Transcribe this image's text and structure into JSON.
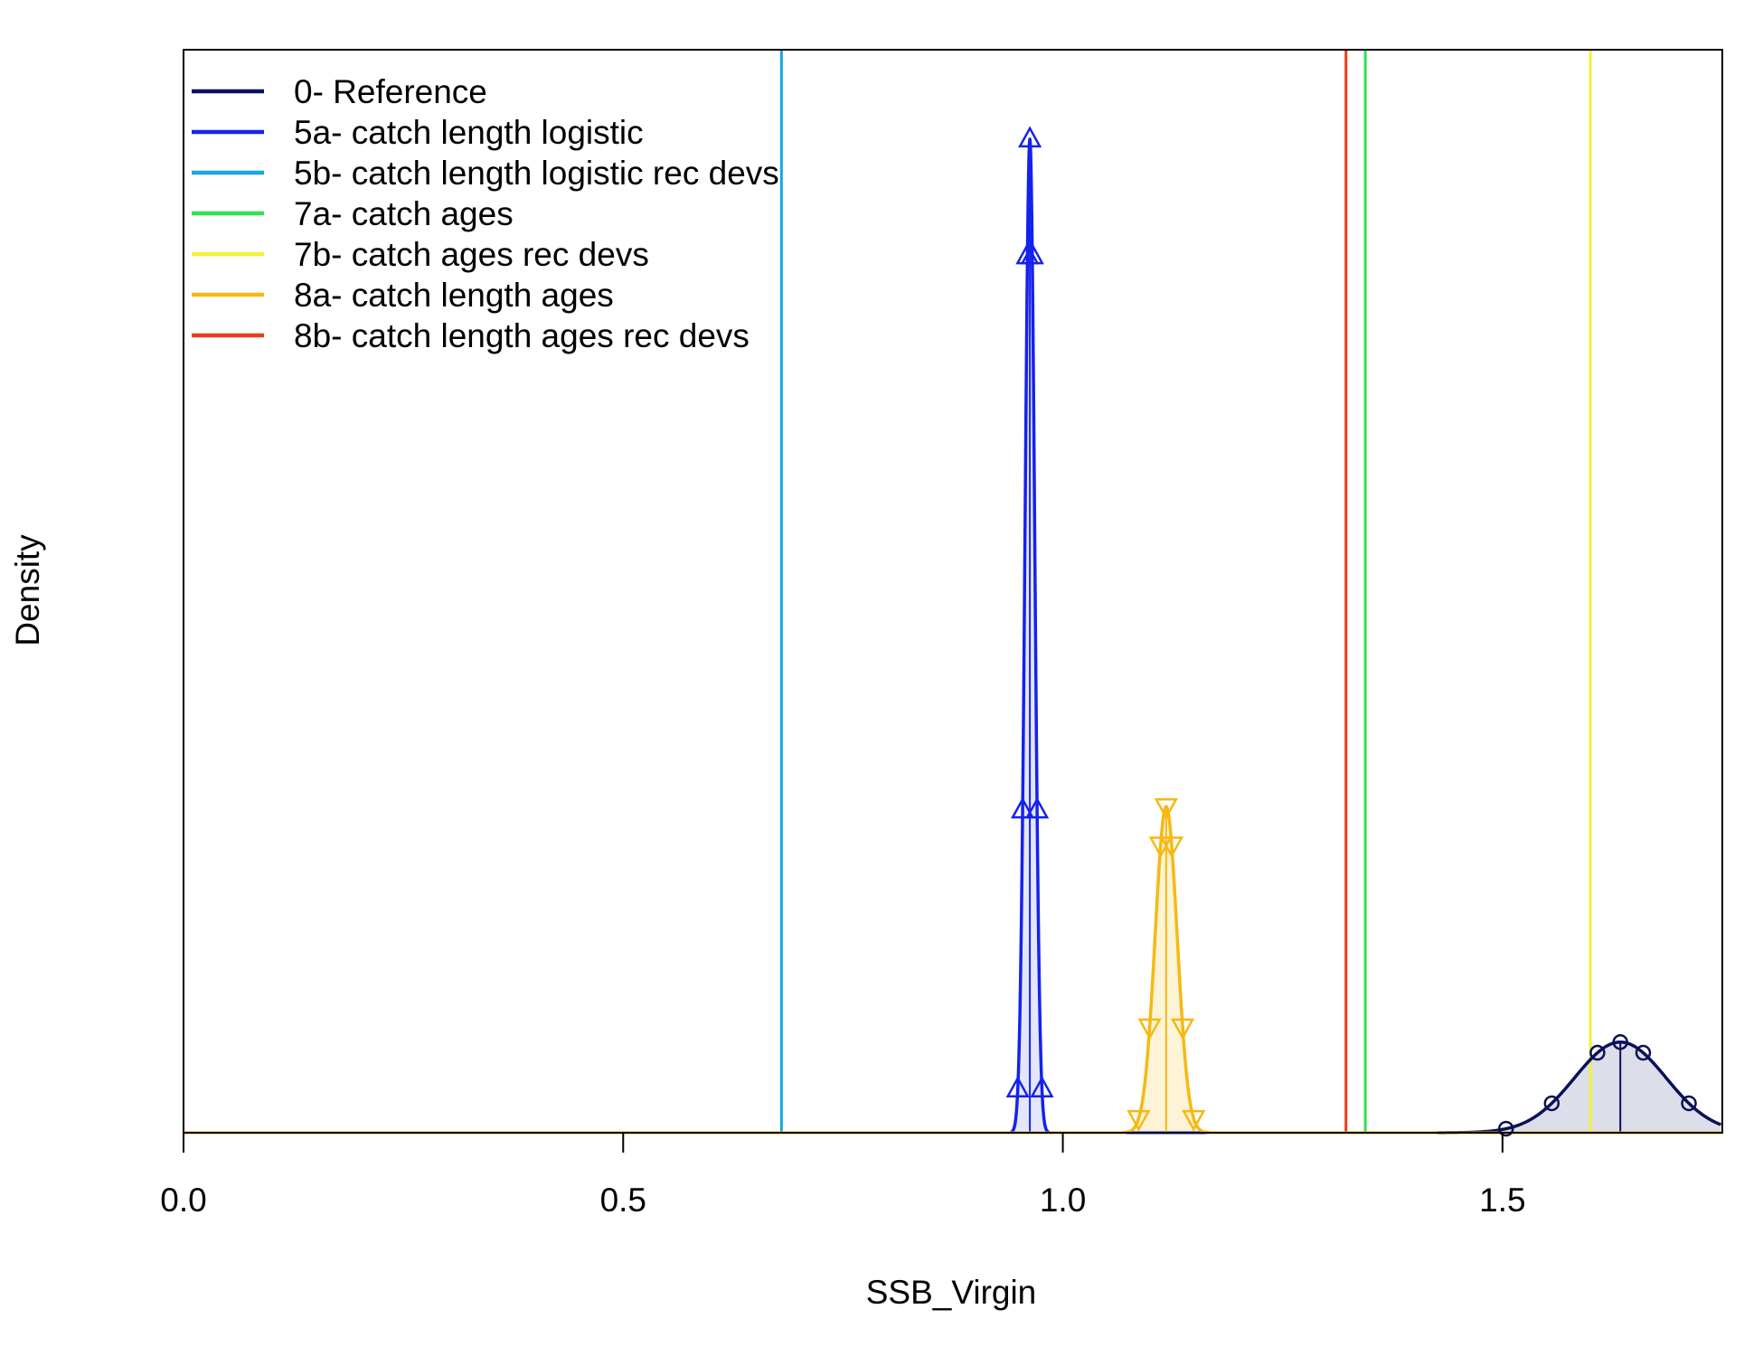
{
  "chart_data": {
    "type": "line",
    "xlabel": "SSB_Virgin",
    "ylabel": "Density",
    "xlim": [
      0.0,
      1.75
    ],
    "ylim": [
      0,
      1.09
    ],
    "x_ticks": [
      "0.0",
      "0.5",
      "1.0",
      "1.5"
    ],
    "x_tick_values": [
      0.0,
      0.5,
      1.0,
      1.5
    ],
    "grid": false,
    "legend_position": "top-left",
    "series": [
      {
        "name": "0- Reference",
        "color": "#0b1159",
        "kind": "density",
        "mean": 1.634,
        "sd": 0.052,
        "peak": 0.0912,
        "vline": 1.634,
        "fill": "#dcdfe9",
        "marker": "circle"
      },
      {
        "name": "5a- catch length logistic",
        "color": "#1522ee",
        "kind": "density",
        "mean": 0.9625,
        "sd": 0.0055,
        "peak": 1.0,
        "vline": 0.9625,
        "fill": "#e4e6fc",
        "marker": "triangle-up"
      },
      {
        "name": "5b- catch length logistic rec devs",
        "color": "#18a6e0",
        "kind": "vline",
        "vline": 0.68
      },
      {
        "name": "7a- catch ages",
        "color": "#2ee34d",
        "kind": "vline",
        "vline": 1.344
      },
      {
        "name": "7b- catch ages rec devs",
        "color": "#f2f23a",
        "kind": "vline",
        "vline": 1.6
      },
      {
        "name": "8a- catch length ages",
        "color": "#f6b812",
        "kind": "density",
        "mean": 1.1175,
        "sd": 0.0125,
        "peak": 0.3282,
        "vline": 1.1175,
        "fill": "#fdf3d6",
        "marker": "triangle-down"
      },
      {
        "name": "8b- catch length ages rec devs",
        "color": "#f03a17",
        "kind": "vline",
        "vline": 1.322
      }
    ]
  }
}
